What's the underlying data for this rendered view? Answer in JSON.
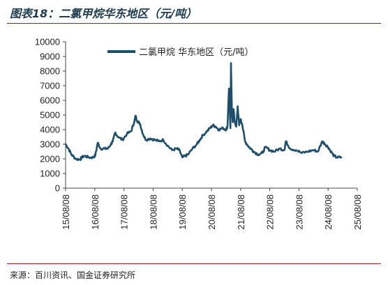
{
  "figure": {
    "title": "图表18：二氯甲烷华东地区（元/吨）",
    "source": "来源：百川资讯、国金证券研究所"
  },
  "chart_data": {
    "type": "line",
    "title": "",
    "xlabel": "",
    "ylabel": "",
    "ylim": [
      0,
      10000
    ],
    "yticks": [
      0,
      1000,
      2000,
      3000,
      4000,
      5000,
      6000,
      7000,
      8000,
      9000,
      10000
    ],
    "xticks": [
      "15/08/08",
      "16/08/08",
      "17/08/08",
      "18/08/08",
      "19/08/08",
      "20/08/08",
      "21/08/08",
      "22/08/08",
      "23/08/08",
      "24/08/08",
      "25/08/08"
    ],
    "legend": "top-left",
    "grid": false,
    "color": "#1f4e6b",
    "series": [
      {
        "name": "二氯甲烷 华东地区（元/吨）",
        "x": [
          2015.6,
          2015.7,
          2015.8,
          2015.95,
          2016.1,
          2016.15,
          2016.25,
          2016.4,
          2016.55,
          2016.62,
          2016.7,
          2016.8,
          2016.95,
          2017.05,
          2017.15,
          2017.22,
          2017.3,
          2017.4,
          2017.55,
          2017.7,
          2017.85,
          2017.95,
          2018.0,
          2018.05,
          2018.15,
          2018.25,
          2018.35,
          2018.5,
          2018.65,
          2018.8,
          2018.95,
          2019.1,
          2019.25,
          2019.4,
          2019.5,
          2019.6,
          2019.7,
          2019.8,
          2019.95,
          2020.1,
          2020.2,
          2020.3,
          2020.45,
          2020.55,
          2020.65,
          2020.75,
          2020.85,
          2021.0,
          2021.1,
          2021.15,
          2021.2,
          2021.25,
          2021.27,
          2021.3,
          2021.33,
          2021.36,
          2021.4,
          2021.45,
          2021.5,
          2021.55,
          2021.6,
          2021.65,
          2021.75,
          2021.85,
          2021.95,
          2022.05,
          2022.2,
          2022.35,
          2022.45,
          2022.6,
          2022.75,
          2022.95,
          2023.1,
          2023.15,
          2023.3,
          2023.5,
          2023.7,
          2023.9,
          2024.1,
          2024.25,
          2024.4,
          2024.5,
          2024.6,
          2024.7,
          2024.8,
          2024.9,
          2025.05
        ],
        "values": [
          3000,
          2700,
          2300,
          2000,
          1950,
          2100,
          2200,
          2100,
          2100,
          2250,
          3100,
          2700,
          2700,
          2700,
          3000,
          3200,
          3800,
          3500,
          3300,
          3700,
          3900,
          4500,
          4950,
          4600,
          4400,
          3700,
          3300,
          3400,
          3300,
          3200,
          3300,
          2900,
          2600,
          2700,
          2600,
          2100,
          2200,
          2300,
          2700,
          3000,
          3300,
          3600,
          3900,
          4100,
          4300,
          4200,
          4000,
          4100,
          4000,
          4200,
          6800,
          4100,
          8550,
          5300,
          4500,
          5400,
          4500,
          4200,
          5600,
          4300,
          4700,
          4400,
          3200,
          2900,
          2700,
          2500,
          2300,
          2400,
          2800,
          2600,
          2500,
          2700,
          2600,
          3200,
          2700,
          2600,
          2400,
          2500,
          2600,
          2500,
          3200,
          3000,
          2800,
          2500,
          2200,
          2100,
          2100
        ]
      }
    ]
  }
}
